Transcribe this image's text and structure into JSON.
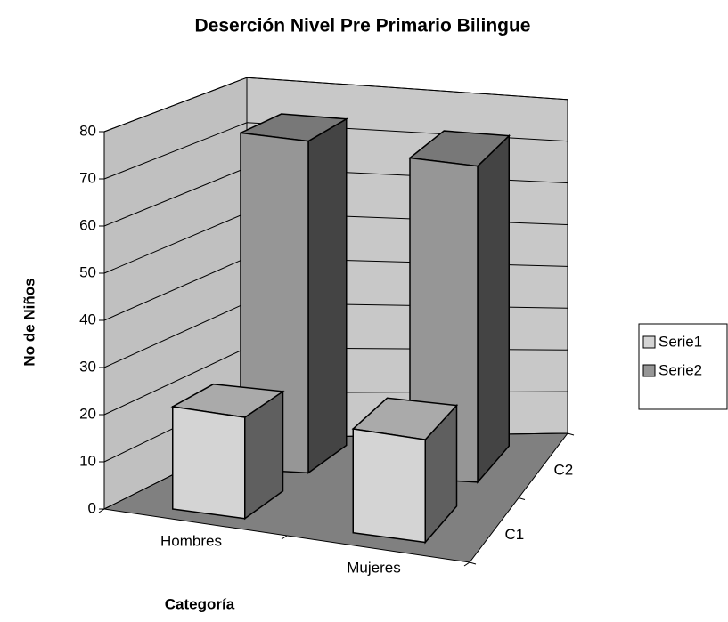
{
  "chart_data": {
    "type": "bar3d",
    "title": "Deserción Nivel Pre Primario Bilingue",
    "x_label": "Categoría",
    "y_label": "No de Niños",
    "categories": [
      "Hombres",
      "Mujeres"
    ],
    "depth_categories": [
      "C1",
      "C2"
    ],
    "series": [
      {
        "name": "Serie1",
        "color": "#d4d4d4",
        "values": [
          22,
          23
        ]
      },
      {
        "name": "Serie2",
        "color": "#969696",
        "values": [
          74,
          73
        ]
      }
    ],
    "ylim": [
      0,
      80
    ],
    "yticks": [
      0,
      10,
      20,
      30,
      40,
      50,
      60,
      70,
      80
    ],
    "grid": true,
    "legend": "right"
  }
}
